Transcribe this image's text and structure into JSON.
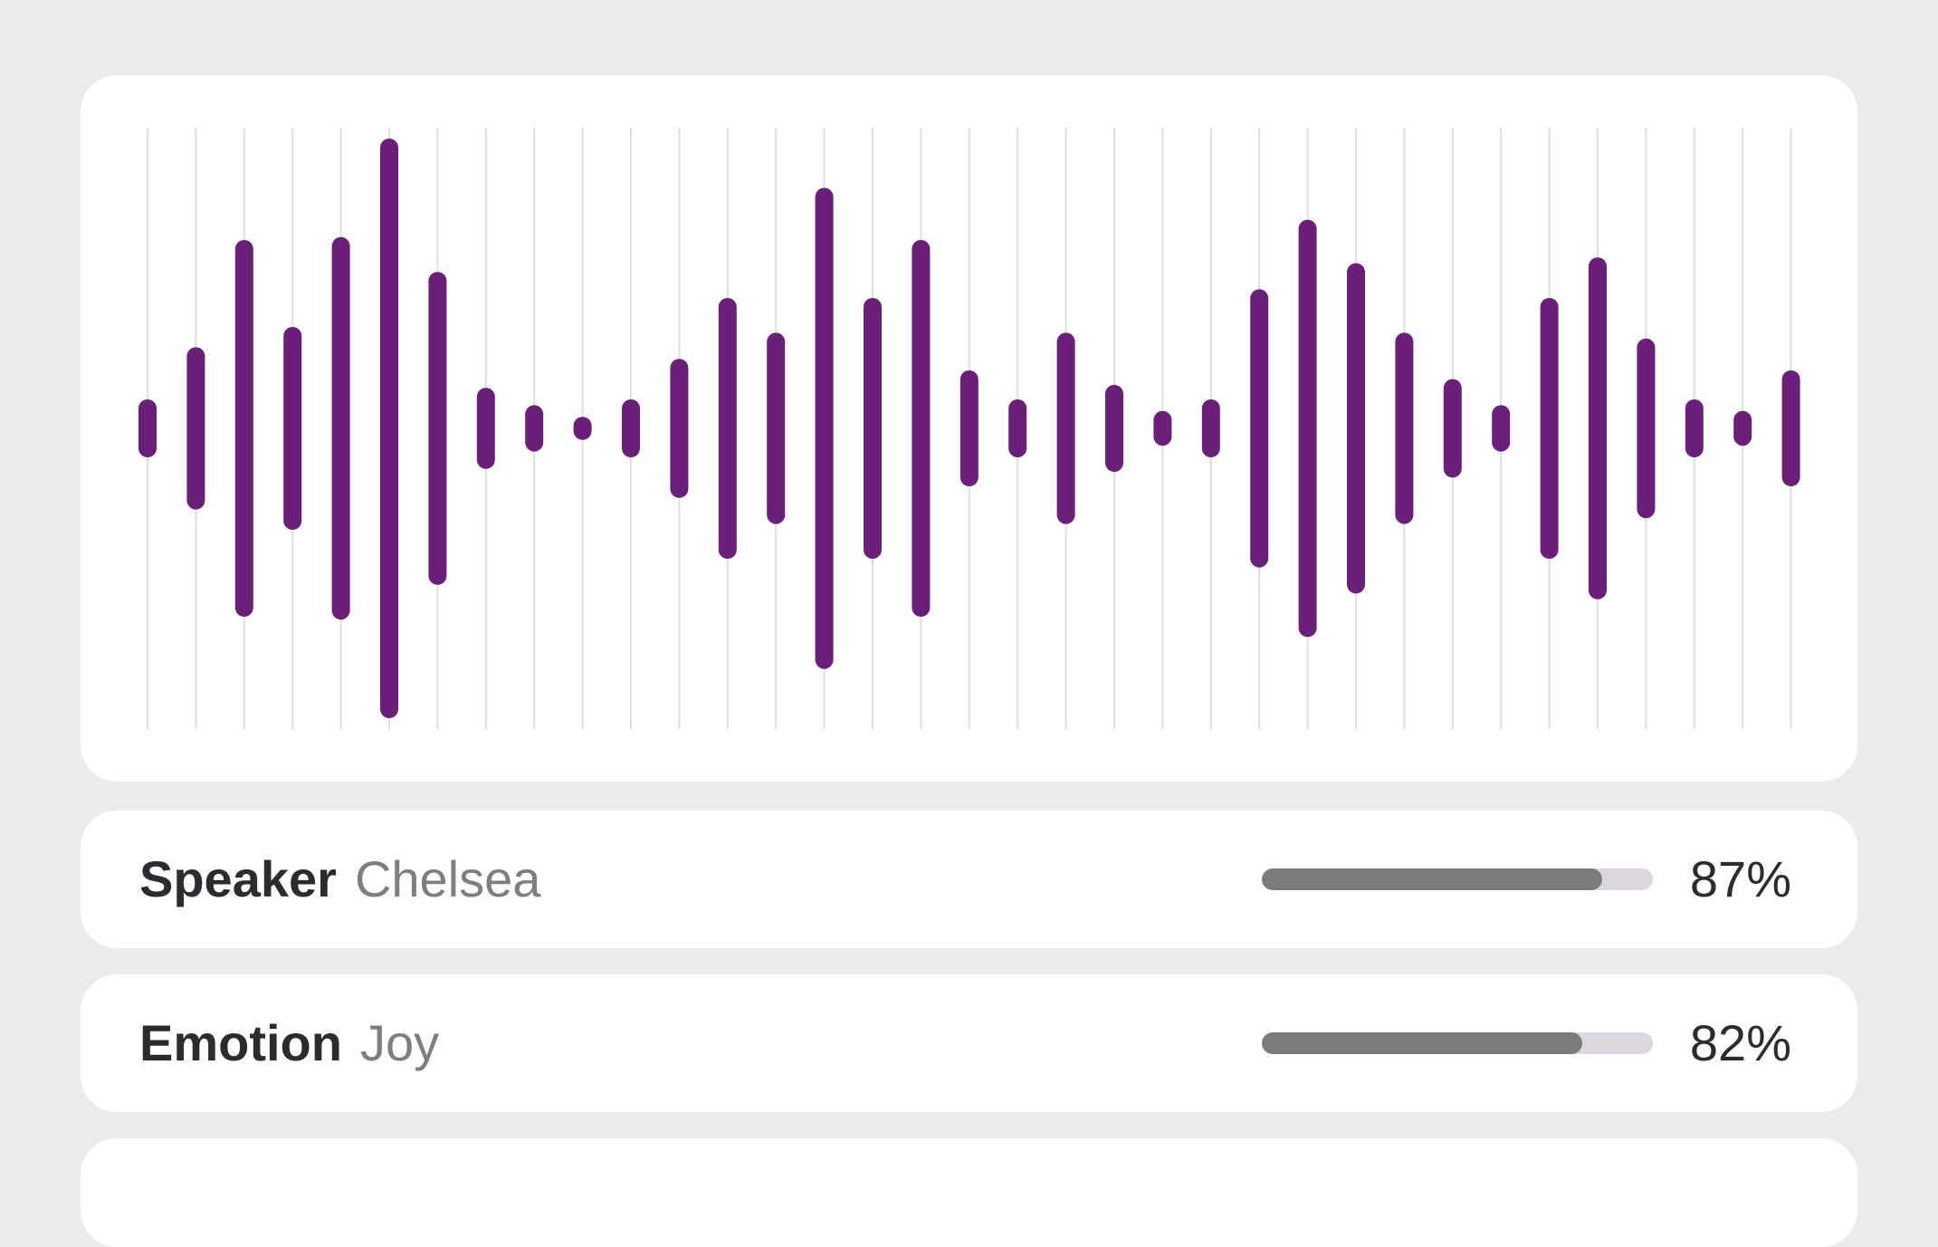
{
  "waveform": {
    "bar_color": "#6a1f78",
    "grid_color": "#dedede",
    "amplitudes": [
      0.1,
      0.28,
      0.65,
      0.35,
      0.66,
      1.0,
      0.54,
      0.14,
      0.08,
      0.04,
      0.1,
      0.24,
      0.45,
      0.33,
      0.83,
      0.45,
      0.65,
      0.2,
      0.1,
      0.33,
      0.15,
      0.06,
      0.1,
      0.48,
      0.72,
      0.57,
      0.33,
      0.17,
      0.08,
      0.45,
      0.59,
      0.31,
      0.1,
      0.06,
      0.2
    ]
  },
  "rows": [
    {
      "key": "Speaker",
      "value": "Chelsea",
      "percent_label": "87%",
      "fraction": 0.87
    },
    {
      "key": "Emotion",
      "value": "Joy",
      "percent_label": "82%",
      "fraction": 0.82
    }
  ],
  "colors": {
    "background": "#ebebeb",
    "card": "#ffffff",
    "meter_fill": "#7a7b7d",
    "meter_track": "#dcd7de"
  }
}
